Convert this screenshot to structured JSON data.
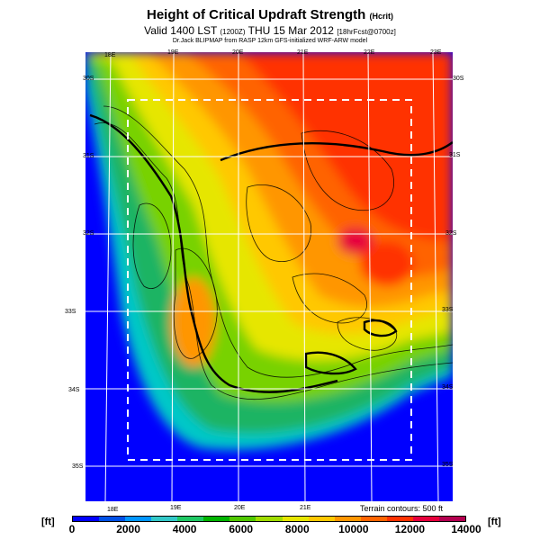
{
  "title": {
    "main": "Height of Critical Updraft Strength",
    "main_suffix": "(Hcrit)",
    "valid": "Valid 1400 LST",
    "valid_utc": "(1200Z)",
    "valid_date": "THU 15 Mar 2012",
    "valid_fcst": "[18hrFcst@0700z]",
    "credit": "Dr.Jack BLIPMAP from RASP 12km GFS-initialized WRF-ARW model"
  },
  "map": {
    "lon_labels_top": [
      "18E",
      "19E",
      "20E",
      "21E",
      "22E",
      "23E"
    ],
    "lon_labels_bottom": [
      "18E",
      "19E",
      "20E",
      "21E"
    ],
    "lat_labels_left": [
      "30S",
      "31S",
      "32S",
      "33S",
      "34S",
      "35S"
    ],
    "lat_labels_right": [
      "30S",
      "31S",
      "32S",
      "33S",
      "34S",
      "35S"
    ],
    "terrain_note": "Terrain contours: 500 ft"
  },
  "colorbar": {
    "unit_left": "[ft]",
    "unit_right": "[ft]",
    "tick_labels": [
      "0",
      "2000",
      "4000",
      "6000",
      "8000",
      "10000",
      "12000",
      "14000"
    ],
    "colors": [
      "#0000ff",
      "#0050e6",
      "#0096ff",
      "#32c8c8",
      "#1ec864",
      "#00b400",
      "#50c800",
      "#a0dc00",
      "#e6e600",
      "#ffc800",
      "#ff9600",
      "#ff6400",
      "#ff3200",
      "#e6003c",
      "#b40050"
    ]
  }
}
